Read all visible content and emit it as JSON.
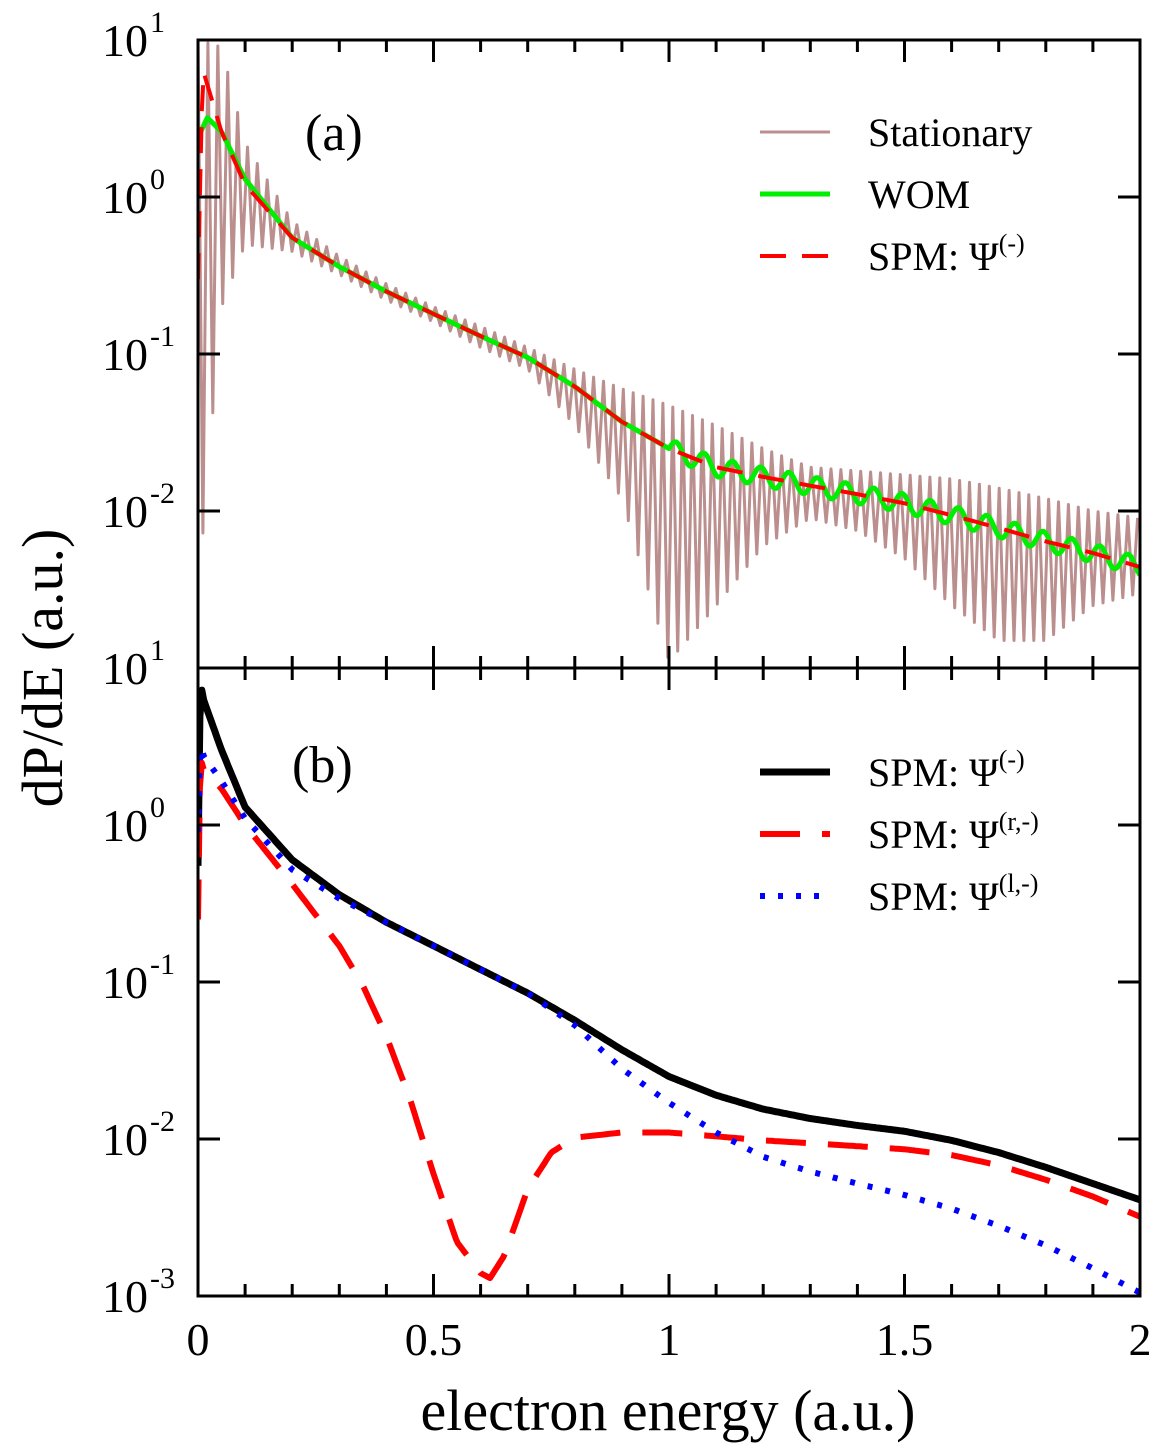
{
  "chart_data": [
    {
      "type": "line",
      "panel_label": "(a)",
      "x_scale": "linear",
      "y_scale": "log",
      "xlim": [
        0,
        2
      ],
      "ylim": [
        0.001,
        10
      ],
      "ylabel": "dP/dE (a.u.)",
      "y_ticks": [
        {
          "base": "10",
          "exp": "1"
        },
        {
          "base": "10",
          "exp": "0"
        },
        {
          "base": "10",
          "exp": "-1"
        },
        {
          "base": "10",
          "exp": "-2"
        }
      ],
      "legend_position": "top-right",
      "series": [
        {
          "name": "Stationary",
          "label": "Stationary",
          "label_sup": "",
          "color": "#bc8f8f",
          "dash": "solid",
          "style": "oscillating",
          "x": [
            0,
            0.05,
            0.1,
            0.2,
            0.3,
            0.4,
            0.5,
            0.6,
            0.7,
            0.8,
            0.9,
            1.0,
            1.1,
            1.2,
            1.3,
            1.4,
            1.5,
            1.6,
            1.7,
            1.8,
            1.9,
            2.0
          ],
          "y": [
            6.0,
            2.4,
            1.1,
            0.55,
            0.36,
            0.25,
            0.18,
            0.13,
            0.095,
            0.062,
            0.037,
            0.025,
            0.018,
            0.016,
            0.014,
            0.012,
            0.011,
            0.0092,
            0.0076,
            0.0062,
            0.0052,
            0.0042
          ],
          "env_low": [
            0.003,
            0.2,
            0.5,
            0.45,
            0.32,
            0.22,
            0.16,
            0.11,
            0.08,
            0.035,
            0.012,
            0.0011,
            0.0025,
            0.006,
            0.009,
            0.0075,
            0.005,
            0.0025,
            0.0015,
            0.0015,
            0.0025,
            0.003
          ],
          "env_high": [
            10,
            9.0,
            2.2,
            0.7,
            0.42,
            0.28,
            0.2,
            0.15,
            0.11,
            0.08,
            0.06,
            0.047,
            0.035,
            0.025,
            0.019,
            0.018,
            0.017,
            0.016,
            0.014,
            0.012,
            0.01,
            0.009
          ]
        },
        {
          "name": "WOM",
          "label": "WOM",
          "label_sup": "",
          "color": "#00ee00",
          "dash": "solid",
          "x": [
            0,
            0.02,
            0.05,
            0.1,
            0.2,
            0.3,
            0.4,
            0.5,
            0.6,
            0.7,
            0.8,
            0.9,
            1.0,
            1.1,
            1.2,
            1.3,
            1.4,
            1.5,
            1.6,
            1.7,
            1.8,
            1.9,
            2.0
          ],
          "y": [
            2.4,
            3.2,
            2.6,
            1.3,
            0.55,
            0.36,
            0.25,
            0.18,
            0.13,
            0.095,
            0.062,
            0.037,
            0.025,
            0.019,
            0.0165,
            0.0145,
            0.0128,
            0.0112,
            0.0094,
            0.0078,
            0.0064,
            0.0054,
            0.0044
          ],
          "ripple_start": 1.0,
          "ripple_amplitude_decades": 0.06
        },
        {
          "name": "SPM: Psi(-)",
          "label": "SPM: Ψ",
          "label_sup": "(-)",
          "color": "#ff0000",
          "dash": "dashed",
          "x": [
            0,
            0.01,
            0.05,
            0.1,
            0.2,
            0.3,
            0.4,
            0.5,
            0.6,
            0.7,
            0.8,
            0.9,
            1.0,
            1.1,
            1.2,
            1.3,
            1.4,
            1.5,
            1.6,
            1.7,
            1.8,
            1.9,
            2.0
          ],
          "y": [
            0.3,
            6.5,
            2.6,
            1.2,
            0.55,
            0.36,
            0.25,
            0.18,
            0.13,
            0.095,
            0.062,
            0.037,
            0.025,
            0.019,
            0.0165,
            0.0145,
            0.0128,
            0.0112,
            0.0094,
            0.0078,
            0.0064,
            0.0054,
            0.0044
          ]
        }
      ]
    },
    {
      "type": "line",
      "panel_label": "(b)",
      "x_scale": "linear",
      "y_scale": "log",
      "xlim": [
        0,
        2
      ],
      "ylim": [
        0.001,
        10
      ],
      "xlabel": "electron energy (a.u.)",
      "x_ticks": [
        "0",
        "0.5",
        "1",
        "1.5",
        "2"
      ],
      "y_ticks": [
        {
          "base": "10",
          "exp": "1"
        },
        {
          "base": "10",
          "exp": "0"
        },
        {
          "base": "10",
          "exp": "-1"
        },
        {
          "base": "10",
          "exp": "-2"
        },
        {
          "base": "10",
          "exp": "-3"
        }
      ],
      "legend_position": "top-right",
      "series": [
        {
          "name": "SPM: Psi(-)",
          "label": "SPM: Ψ",
          "label_sup": "(-)",
          "color": "#000000",
          "dash": "solid",
          "x": [
            0,
            0.005,
            0.01,
            0.05,
            0.1,
            0.2,
            0.3,
            0.4,
            0.5,
            0.6,
            0.7,
            0.8,
            0.9,
            1.0,
            1.1,
            1.2,
            1.3,
            1.4,
            1.5,
            1.6,
            1.7,
            1.8,
            1.9,
            2.0
          ],
          "y": [
            0.55,
            8.5,
            6.5,
            3.0,
            1.3,
            0.6,
            0.36,
            0.24,
            0.17,
            0.12,
            0.085,
            0.057,
            0.037,
            0.025,
            0.019,
            0.0155,
            0.0135,
            0.0122,
            0.0112,
            0.0098,
            0.0082,
            0.0066,
            0.0052,
            0.0041
          ]
        },
        {
          "name": "SPM: Psi(r,-)",
          "label": "SPM: Ψ",
          "label_sup": "(r,-)",
          "color": "#ff0000",
          "dash": "long-dashed",
          "x": [
            0,
            0.005,
            0.01,
            0.05,
            0.1,
            0.2,
            0.3,
            0.35,
            0.4,
            0.45,
            0.5,
            0.55,
            0.6,
            0.62,
            0.65,
            0.7,
            0.75,
            0.8,
            0.9,
            1.0,
            1.1,
            1.2,
            1.3,
            1.4,
            1.5,
            1.6,
            1.7,
            1.8,
            1.9,
            2.0
          ],
          "y": [
            0.25,
            2.8,
            2.3,
            1.7,
            1.0,
            0.42,
            0.17,
            0.095,
            0.045,
            0.018,
            0.006,
            0.0022,
            0.0014,
            0.0013,
            0.0018,
            0.0048,
            0.0082,
            0.0102,
            0.011,
            0.011,
            0.0104,
            0.0098,
            0.0094,
            0.009,
            0.0086,
            0.0079,
            0.0068,
            0.0055,
            0.0043,
            0.0032
          ]
        },
        {
          "name": "SPM: Psi(l,-)",
          "label": "SPM: Ψ",
          "label_sup": "(l,-)",
          "color": "#0000ff",
          "dash": "dotted",
          "x": [
            0,
            0.005,
            0.01,
            0.05,
            0.1,
            0.2,
            0.3,
            0.4,
            0.5,
            0.6,
            0.7,
            0.8,
            0.9,
            1.0,
            1.1,
            1.2,
            1.3,
            1.4,
            1.5,
            1.6,
            1.7,
            1.8,
            1.9,
            2.0
          ],
          "y": [
            0.9,
            3.6,
            2.8,
            1.9,
            1.1,
            0.52,
            0.34,
            0.24,
            0.17,
            0.12,
            0.085,
            0.053,
            0.028,
            0.017,
            0.011,
            0.0077,
            0.0062,
            0.0052,
            0.0044,
            0.0036,
            0.0028,
            0.0021,
            0.0015,
            0.00105
          ]
        }
      ]
    }
  ]
}
